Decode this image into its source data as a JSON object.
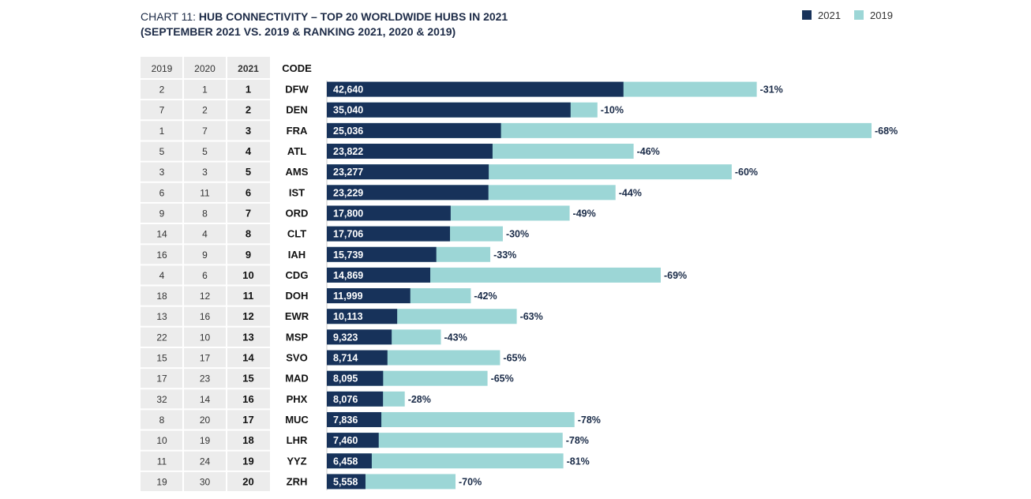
{
  "title": {
    "prefix": "CHART 11: ",
    "main": "HUB CONNECTIVITY – TOP 20 WORLDWIDE HUBS IN 2021",
    "sub": "(SEPTEMBER 2021 VS. 2019 & RANKING 2021, 2020 & 2019)"
  },
  "legend": [
    {
      "label": "2021",
      "color": "#17325a"
    },
    {
      "label": "2019",
      "color": "#9cd6d6"
    }
  ],
  "table_headers": [
    "2019",
    "2020",
    "2021",
    "CODE"
  ],
  "chart_data": {
    "type": "bar",
    "orientation": "horizontal",
    "series_labels": [
      "2021",
      "2019"
    ],
    "colors": {
      "2021": "#17325a",
      "2019": "#9cd6d6",
      "grid": "#dcdcdc",
      "cell": "#ececec"
    },
    "rows": [
      {
        "rank2019": "2",
        "rank2020": "1",
        "rank2021": "1",
        "code": "DFW",
        "value2021": 42640,
        "label2021": "42,640",
        "value2019": 61800,
        "change": "-31%"
      },
      {
        "rank2019": "7",
        "rank2020": "2",
        "rank2021": "2",
        "code": "DEN",
        "value2021": 35040,
        "label2021": "35,040",
        "value2019": 38900,
        "change": "-10%"
      },
      {
        "rank2019": "1",
        "rank2020": "7",
        "rank2021": "3",
        "code": "FRA",
        "value2021": 25036,
        "label2021": "25,036",
        "value2019": 78300,
        "change": "-68%"
      },
      {
        "rank2019": "5",
        "rank2020": "5",
        "rank2021": "4",
        "code": "ATL",
        "value2021": 23822,
        "label2021": "23,822",
        "value2019": 44100,
        "change": "-46%"
      },
      {
        "rank2019": "3",
        "rank2020": "3",
        "rank2021": "5",
        "code": "AMS",
        "value2021": 23277,
        "label2021": "23,277",
        "value2019": 58200,
        "change": "-60%"
      },
      {
        "rank2019": "6",
        "rank2020": "11",
        "rank2021": "6",
        "code": "IST",
        "value2021": 23229,
        "label2021": "23,229",
        "value2019": 41500,
        "change": "-44%"
      },
      {
        "rank2019": "9",
        "rank2020": "8",
        "rank2021": "7",
        "code": "ORD",
        "value2021": 17800,
        "label2021": "17,800",
        "value2019": 34900,
        "change": "-49%"
      },
      {
        "rank2019": "14",
        "rank2020": "4",
        "rank2021": "8",
        "code": "CLT",
        "value2021": 17706,
        "label2021": "17,706",
        "value2019": 25300,
        "change": "-30%"
      },
      {
        "rank2019": "16",
        "rank2020": "9",
        "rank2021": "9",
        "code": "IAH",
        "value2021": 15739,
        "label2021": "15,739",
        "value2019": 23500,
        "change": "-33%"
      },
      {
        "rank2019": "4",
        "rank2020": "6",
        "rank2021": "10",
        "code": "CDG",
        "value2021": 14869,
        "label2021": "14,869",
        "value2019": 48000,
        "change": "-69%"
      },
      {
        "rank2019": "18",
        "rank2020": "12",
        "rank2021": "11",
        "code": "DOH",
        "value2021": 11999,
        "label2021": "11,999",
        "value2019": 20700,
        "change": "-42%"
      },
      {
        "rank2019": "13",
        "rank2020": "16",
        "rank2021": "12",
        "code": "EWR",
        "value2021": 10113,
        "label2021": "10,113",
        "value2019": 27300,
        "change": "-63%"
      },
      {
        "rank2019": "22",
        "rank2020": "10",
        "rank2021": "13",
        "code": "MSP",
        "value2021": 9323,
        "label2021": "9,323",
        "value2019": 16400,
        "change": "-43%"
      },
      {
        "rank2019": "15",
        "rank2020": "17",
        "rank2021": "14",
        "code": "SVO",
        "value2021": 8714,
        "label2021": "8,714",
        "value2019": 24900,
        "change": "-65%"
      },
      {
        "rank2019": "17",
        "rank2020": "23",
        "rank2021": "15",
        "code": "MAD",
        "value2021": 8095,
        "label2021": "8,095",
        "value2019": 23100,
        "change": "-65%"
      },
      {
        "rank2019": "32",
        "rank2020": "14",
        "rank2021": "16",
        "code": "PHX",
        "value2021": 8076,
        "label2021": "8,076",
        "value2019": 11200,
        "change": "-28%"
      },
      {
        "rank2019": "8",
        "rank2020": "20",
        "rank2021": "17",
        "code": "MUC",
        "value2021": 7836,
        "label2021": "7,836",
        "value2019": 35600,
        "change": "-78%"
      },
      {
        "rank2019": "10",
        "rank2020": "19",
        "rank2021": "18",
        "code": "LHR",
        "value2021": 7460,
        "label2021": "7,460",
        "value2019": 33900,
        "change": "-78%"
      },
      {
        "rank2019": "11",
        "rank2020": "24",
        "rank2021": "19",
        "code": "YYZ",
        "value2021": 6458,
        "label2021": "6,458",
        "value2019": 34000,
        "change": "-81%"
      },
      {
        "rank2019": "19",
        "rank2020": "30",
        "rank2021": "20",
        "code": "ZRH",
        "value2021": 5558,
        "label2021": "5,558",
        "value2019": 18500,
        "change": "-70%"
      }
    ]
  }
}
